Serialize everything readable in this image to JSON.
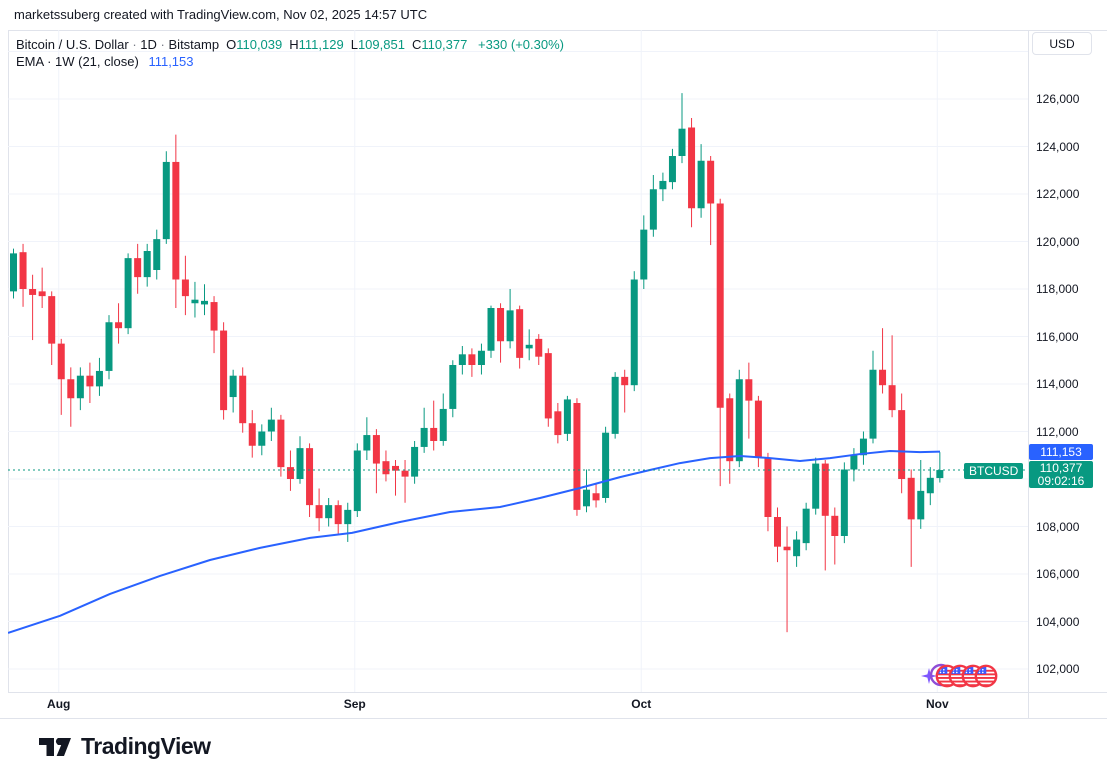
{
  "attribution": "marketssuberg created with TradingView.com, Nov 02, 2025 14:57 UTC",
  "legend": {
    "symbol": "Bitcoin / U.S. Dollar",
    "sep1": "·",
    "timeframe": "1D",
    "sep2": "·",
    "exchange": "Bitstamp",
    "ohlc": [
      {
        "letter": "O",
        "value": "110,039"
      },
      {
        "letter": "H",
        "value": "111,129"
      },
      {
        "letter": "L",
        "value": "109,851"
      },
      {
        "letter": "C",
        "value": "110,377"
      }
    ],
    "change": "+330 (+0.30%)",
    "indicator": "EMA · 1W (21, close)",
    "indicator_value": "111,153"
  },
  "axis": {
    "currency": "USD",
    "price_ticks": [
      126000,
      124000,
      122000,
      120000,
      118000,
      116000,
      114000,
      112000,
      108000,
      106000,
      104000,
      102000
    ],
    "month_ticks": [
      {
        "label": "Aug",
        "index": 4
      },
      {
        "label": "Sep",
        "index": 35
      },
      {
        "label": "Oct",
        "index": 65
      },
      {
        "label": "Nov",
        "index": 96
      }
    ]
  },
  "tags": {
    "ema_price": "111,153",
    "last_price": "110,377",
    "countdown": "09:02:16",
    "symbol_short": "BTCUSD"
  },
  "colors": {
    "up": "#089981",
    "down": "#f23645",
    "ema": "#2962ff",
    "grid": "#f0f3fa",
    "border": "#e0e3eb",
    "text": "#131722"
  },
  "stickers": {
    "items": [
      "sparkle",
      "flag-circle",
      "flag-circle",
      "flag-circle",
      "flag-circle"
    ]
  },
  "footer": {
    "logo_text": "TradingView"
  },
  "chart_data": {
    "type": "candlestick",
    "title": "Bitcoin / U.S. Dollar, 1D, Bitstamp",
    "ylabel": "Price (USD)",
    "ylim": [
      101000,
      128900
    ],
    "grid": true,
    "last_price": 110377,
    "ema_last": 111153,
    "candles": [
      [
        "Jul 28",
        117900,
        119700,
        117600,
        119500
      ],
      [
        "Jul 29",
        119550,
        119900,
        117250,
        118000
      ],
      [
        "Jul 30",
        118000,
        118600,
        115850,
        117750
      ],
      [
        "Jul 31",
        117900,
        118900,
        117200,
        117700
      ],
      [
        "Aug 1",
        117700,
        117900,
        114800,
        115700
      ],
      [
        "Aug 2",
        115700,
        115900,
        112700,
        114200
      ],
      [
        "Aug 3",
        114200,
        114700,
        112200,
        113400
      ],
      [
        "Aug 4",
        113400,
        114700,
        112900,
        114350
      ],
      [
        "Aug 5",
        114350,
        114900,
        113200,
        113900
      ],
      [
        "Aug 6",
        113900,
        115100,
        113500,
        114550
      ],
      [
        "Aug 7",
        114550,
        116900,
        114200,
        116600
      ],
      [
        "Aug 8",
        116600,
        117400,
        115700,
        116350
      ],
      [
        "Aug 9",
        116350,
        119500,
        116100,
        119300
      ],
      [
        "Aug 10",
        119300,
        119900,
        117800,
        118500
      ],
      [
        "Aug 11",
        118500,
        119900,
        118100,
        119600
      ],
      [
        "Aug 12",
        118800,
        120500,
        118400,
        120100
      ],
      [
        "Aug 13",
        120100,
        123800,
        119900,
        123350
      ],
      [
        "Aug 14",
        123350,
        124500,
        117200,
        118400
      ],
      [
        "Aug 15",
        118400,
        119400,
        116900,
        117700
      ],
      [
        "Aug 16",
        117400,
        118300,
        116800,
        117550
      ],
      [
        "Aug 17",
        117350,
        118200,
        116900,
        117500
      ],
      [
        "Aug 18",
        117450,
        117700,
        115300,
        116250
      ],
      [
        "Aug 19",
        116250,
        116600,
        112500,
        112900
      ],
      [
        "Aug 20",
        113450,
        114600,
        112800,
        114350
      ],
      [
        "Aug 21",
        114350,
        114700,
        111950,
        112350
      ],
      [
        "Aug 22",
        112350,
        112900,
        110900,
        111400
      ],
      [
        "Aug 23",
        111400,
        112300,
        111000,
        112000
      ],
      [
        "Aug 24",
        112000,
        113000,
        111600,
        112500
      ],
      [
        "Aug 25",
        112500,
        112700,
        110100,
        110500
      ],
      [
        "Aug 26",
        110500,
        111200,
        109500,
        110000
      ],
      [
        "Aug 27",
        110000,
        111800,
        109800,
        111300
      ],
      [
        "Aug 28",
        111300,
        111500,
        108400,
        108900
      ],
      [
        "Aug 29",
        108900,
        109600,
        107800,
        108350
      ],
      [
        "Aug 30",
        108350,
        109200,
        108000,
        108900
      ],
      [
        "Aug 31",
        108900,
        109100,
        107700,
        108100
      ],
      [
        "Sep 1",
        108100,
        109000,
        107350,
        108700
      ],
      [
        "Sep 2",
        108650,
        111500,
        108400,
        111200
      ],
      [
        "Sep 3",
        111200,
        112600,
        110800,
        111850
      ],
      [
        "Sep 4",
        111850,
        112100,
        109400,
        110650
      ],
      [
        "Sep 5",
        110750,
        111200,
        109900,
        110200
      ],
      [
        "Sep 6",
        110550,
        110800,
        109300,
        110350
      ],
      [
        "Sep 7",
        110350,
        110800,
        109000,
        110100
      ],
      [
        "Sep 8",
        110100,
        111600,
        109800,
        111350
      ],
      [
        "Sep 9",
        111350,
        113000,
        111100,
        112150
      ],
      [
        "Sep 10",
        112150,
        113300,
        111200,
        111600
      ],
      [
        "Sep 11",
        111600,
        113600,
        111400,
        112950
      ],
      [
        "Sep 12",
        112950,
        115000,
        112600,
        114800
      ],
      [
        "Sep 13",
        114800,
        115600,
        114400,
        115250
      ],
      [
        "Sep 14",
        115250,
        115500,
        114300,
        114800
      ],
      [
        "Sep 15",
        114800,
        115700,
        114400,
        115400
      ],
      [
        "Sep 16",
        115400,
        117300,
        115100,
        117200
      ],
      [
        "Sep 17",
        117200,
        117400,
        114900,
        115800
      ],
      [
        "Sep 18",
        115800,
        118000,
        115500,
        117100
      ],
      [
        "Sep 19",
        117150,
        117300,
        114650,
        115100
      ],
      [
        "Sep 20",
        115500,
        116300,
        115000,
        115650
      ],
      [
        "Sep 21",
        115900,
        116100,
        114800,
        115150
      ],
      [
        "Sep 22",
        115300,
        115500,
        112200,
        112550
      ],
      [
        "Sep 23",
        112850,
        113200,
        111500,
        111850
      ],
      [
        "Sep 24",
        111900,
        113500,
        111600,
        113350
      ],
      [
        "Sep 25",
        113200,
        113400,
        108450,
        108700
      ],
      [
        "Sep 26",
        108850,
        110400,
        108600,
        109550
      ],
      [
        "Sep 27",
        109400,
        109800,
        108800,
        109100
      ],
      [
        "Sep 28",
        109200,
        112200,
        109000,
        111950
      ],
      [
        "Sep 29",
        111900,
        114500,
        111700,
        114300
      ],
      [
        "Sep 30",
        114300,
        114600,
        112800,
        113950
      ],
      [
        "Oct 1",
        113950,
        118750,
        113700,
        118400
      ],
      [
        "Oct 2",
        118400,
        121100,
        118000,
        120500
      ],
      [
        "Oct 3",
        120500,
        122800,
        120200,
        122200
      ],
      [
        "Oct 4",
        122200,
        122900,
        121700,
        122550
      ],
      [
        "Oct 5",
        122500,
        123900,
        122200,
        123600
      ],
      [
        "Oct 6",
        123600,
        126250,
        123300,
        124750
      ],
      [
        "Oct 7",
        124800,
        125200,
        120600,
        121400
      ],
      [
        "Oct 8",
        121400,
        124100,
        121000,
        123400
      ],
      [
        "Oct 9",
        123400,
        123600,
        119850,
        121600
      ],
      [
        "Oct 10",
        121600,
        121800,
        109700,
        113000
      ],
      [
        "Oct 11",
        113400,
        113600,
        109800,
        110750
      ],
      [
        "Oct 12",
        110750,
        114600,
        110500,
        114200
      ],
      [
        "Oct 13",
        114200,
        114900,
        111700,
        113300
      ],
      [
        "Oct 14",
        113300,
        113500,
        110500,
        110900
      ],
      [
        "Oct 15",
        110900,
        111100,
        107800,
        108400
      ],
      [
        "Oct 16",
        108400,
        108800,
        106500,
        107150
      ],
      [
        "Oct 17",
        107150,
        108000,
        103550,
        107000
      ],
      [
        "Oct 18",
        106750,
        107800,
        106300,
        107450
      ],
      [
        "Oct 19",
        107300,
        109000,
        107000,
        108750
      ],
      [
        "Oct 20",
        108750,
        110900,
        108500,
        110650
      ],
      [
        "Oct 21",
        110650,
        110800,
        106150,
        108450
      ],
      [
        "Oct 22",
        108450,
        108800,
        106400,
        107600
      ],
      [
        "Oct 23",
        107600,
        110700,
        107300,
        110400
      ],
      [
        "Oct 24",
        110400,
        111300,
        109900,
        111000
      ],
      [
        "Oct 25",
        111000,
        112000,
        110600,
        111700
      ],
      [
        "Oct 26",
        111700,
        115400,
        111500,
        114600
      ],
      [
        "Oct 27",
        114600,
        116350,
        113600,
        113950
      ],
      [
        "Oct 28",
        113950,
        116050,
        112600,
        112900
      ],
      [
        "Oct 29",
        112900,
        113600,
        109400,
        110000
      ],
      [
        "Oct 30",
        110050,
        110400,
        106300,
        108300
      ],
      [
        "Oct 31",
        108300,
        110800,
        107900,
        109500
      ],
      [
        "Nov 1",
        109400,
        110500,
        108900,
        110050
      ],
      [
        "Nov 2",
        110039,
        111129,
        109851,
        110377
      ]
    ],
    "ema_points": [
      [
        8,
        103520
      ],
      [
        60,
        104240
      ],
      [
        110,
        105160
      ],
      [
        160,
        105920
      ],
      [
        210,
        106590
      ],
      [
        260,
        107100
      ],
      [
        310,
        107520
      ],
      [
        352,
        107730
      ],
      [
        400,
        108190
      ],
      [
        450,
        108610
      ],
      [
        500,
        108820
      ],
      [
        540,
        109200
      ],
      [
        580,
        109620
      ],
      [
        620,
        110080
      ],
      [
        650,
        110380
      ],
      [
        680,
        110670
      ],
      [
        710,
        110880
      ],
      [
        740,
        110970
      ],
      [
        770,
        110880
      ],
      [
        800,
        110760
      ],
      [
        830,
        110880
      ],
      [
        860,
        111050
      ],
      [
        890,
        111180
      ],
      [
        920,
        111130
      ],
      [
        940,
        111153
      ]
    ]
  }
}
